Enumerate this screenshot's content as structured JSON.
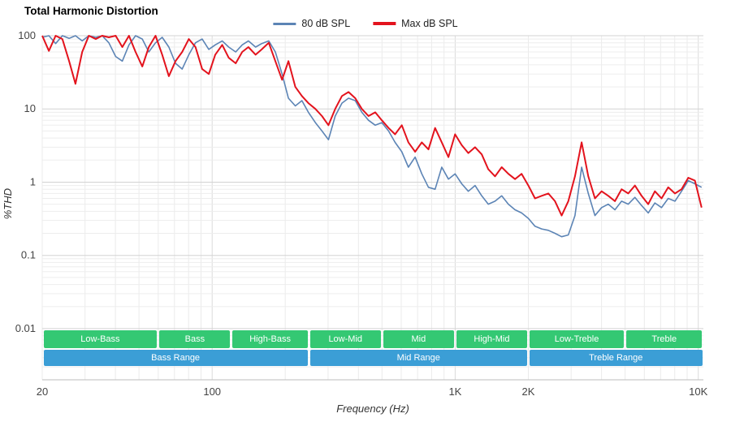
{
  "title": "Total Harmonic Distortion",
  "legend": {
    "items": [
      {
        "label": "80 dB SPL",
        "color": "#5c84b5"
      },
      {
        "label": "Max dB SPL",
        "color": "#e3131d"
      }
    ]
  },
  "axes": {
    "x": {
      "label": "Frequency (Hz)",
      "ticks": [
        {
          "value": 20,
          "label": "20"
        },
        {
          "value": 100,
          "label": "100"
        },
        {
          "value": 1000,
          "label": "1K"
        },
        {
          "value": 2000,
          "label": "2K"
        },
        {
          "value": 10000,
          "label": "10K"
        }
      ]
    },
    "y": {
      "label": "%THD",
      "ticks": [
        {
          "value": 100,
          "label": "100"
        },
        {
          "value": 10,
          "label": "10"
        },
        {
          "value": 1,
          "label": "1"
        },
        {
          "value": 0.1,
          "label": "0.1"
        },
        {
          "value": 0.01,
          "label": "0.01"
        }
      ]
    }
  },
  "bands": {
    "sub_color": "#34c873",
    "main_color": "#3b9ed6",
    "sub": [
      {
        "label": "Low-Bass",
        "fmin": 20,
        "fmax": 60
      },
      {
        "label": "Bass",
        "fmin": 60,
        "fmax": 120
      },
      {
        "label": "High-Bass",
        "fmin": 120,
        "fmax": 250
      },
      {
        "label": "Low-Mid",
        "fmin": 250,
        "fmax": 500
      },
      {
        "label": "Mid",
        "fmin": 500,
        "fmax": 1000
      },
      {
        "label": "High-Mid",
        "fmin": 1000,
        "fmax": 2000
      },
      {
        "label": "Low-Treble",
        "fmin": 2000,
        "fmax": 5000
      },
      {
        "label": "Treble",
        "fmin": 5000,
        "fmax": 10500
      }
    ],
    "main": [
      {
        "label": "Bass Range",
        "fmin": 20,
        "fmax": 250
      },
      {
        "label": "Mid Range",
        "fmin": 250,
        "fmax": 2000
      },
      {
        "label": "Treble Range",
        "fmin": 2000,
        "fmax": 10500
      }
    ]
  },
  "chart_data": {
    "type": "line",
    "title": "Total Harmonic Distortion",
    "xlabel": "Frequency (Hz)",
    "ylabel": "%THD",
    "x_scale": "log",
    "y_scale": "log",
    "xlim": [
      20,
      10500
    ],
    "ylim": [
      0.002,
      100
    ],
    "grid": true,
    "legend_position": "top-center",
    "x": [
      20,
      21.3,
      22.7,
      24.2,
      25.8,
      27.4,
      29.2,
      31.1,
      33.2,
      35.3,
      37.6,
      40.1,
      42.7,
      45.5,
      48.4,
      51.6,
      54.9,
      58.5,
      62.3,
      66.4,
      70.7,
      75.3,
      80.2,
      85.4,
      91,
      96.9,
      103,
      110,
      117,
      125,
      133,
      141,
      151,
      160,
      171,
      182,
      194,
      206,
      220,
      234,
      249,
      266,
      283,
      301,
      321,
      342,
      364,
      388,
      413,
      440,
      469,
      499,
      532,
      566,
      603,
      642,
      684,
      729,
      776,
      827,
      881,
      938,
      999,
      1064,
      1133,
      1207,
      1286,
      1369,
      1459,
      1554,
      1655,
      1763,
      1877,
      2000,
      2130,
      2269,
      2417,
      2574,
      2742,
      2920,
      3111,
      3313,
      3529,
      3759,
      4004,
      4265,
      4543,
      4839,
      5154,
      5490,
      5848,
      6229,
      6635,
      7067,
      7527,
      8018,
      8540,
      9097,
      9690,
      10321
    ],
    "series": [
      {
        "name": "80 dB SPL",
        "color": "#5c84b5",
        "values": [
          95,
          100,
          78,
          100,
          92,
          100,
          85,
          100,
          95,
          100,
          80,
          52,
          45,
          75,
          100,
          90,
          60,
          80,
          95,
          70,
          42,
          35,
          55,
          80,
          90,
          65,
          75,
          85,
          70,
          60,
          75,
          85,
          70,
          78,
          85,
          60,
          30,
          14,
          11,
          13,
          9,
          6.5,
          5,
          3.8,
          8,
          12,
          14,
          13,
          9,
          7,
          6,
          6.5,
          5,
          3.5,
          2.6,
          1.6,
          2.2,
          1.3,
          0.85,
          0.8,
          1.6,
          1.1,
          1.3,
          0.95,
          0.75,
          0.9,
          0.65,
          0.5,
          0.55,
          0.65,
          0.5,
          0.42,
          0.38,
          0.32,
          0.25,
          0.23,
          0.22,
          0.2,
          0.18,
          0.19,
          0.35,
          1.6,
          0.7,
          0.35,
          0.45,
          0.5,
          0.42,
          0.55,
          0.5,
          0.62,
          0.48,
          0.38,
          0.52,
          0.45,
          0.6,
          0.55,
          0.75,
          1.05,
          0.95,
          0.85
        ]
      },
      {
        "name": "Max dB SPL",
        "color": "#e3131d",
        "values": [
          100,
          62,
          100,
          90,
          45,
          22,
          60,
          100,
          90,
          100,
          95,
          100,
          70,
          100,
          60,
          38,
          70,
          100,
          55,
          28,
          45,
          60,
          90,
          70,
          35,
          30,
          55,
          75,
          50,
          42,
          60,
          70,
          55,
          65,
          80,
          45,
          25,
          45,
          20,
          15,
          12,
          10,
          8,
          6,
          10,
          15,
          17,
          14,
          10,
          8,
          9,
          7,
          5.5,
          4.5,
          6,
          3.5,
          2.6,
          3.5,
          2.8,
          5.5,
          3.5,
          2.2,
          4.5,
          3.2,
          2.5,
          3,
          2.4,
          1.5,
          1.2,
          1.6,
          1.3,
          1.1,
          1.3,
          0.9,
          0.6,
          0.65,
          0.7,
          0.55,
          0.35,
          0.55,
          1.2,
          3.5,
          1.2,
          0.6,
          0.75,
          0.65,
          0.55,
          0.8,
          0.7,
          0.9,
          0.65,
          0.5,
          0.75,
          0.6,
          0.85,
          0.7,
          0.8,
          1.15,
          1.05,
          0.45
        ]
      }
    ]
  }
}
